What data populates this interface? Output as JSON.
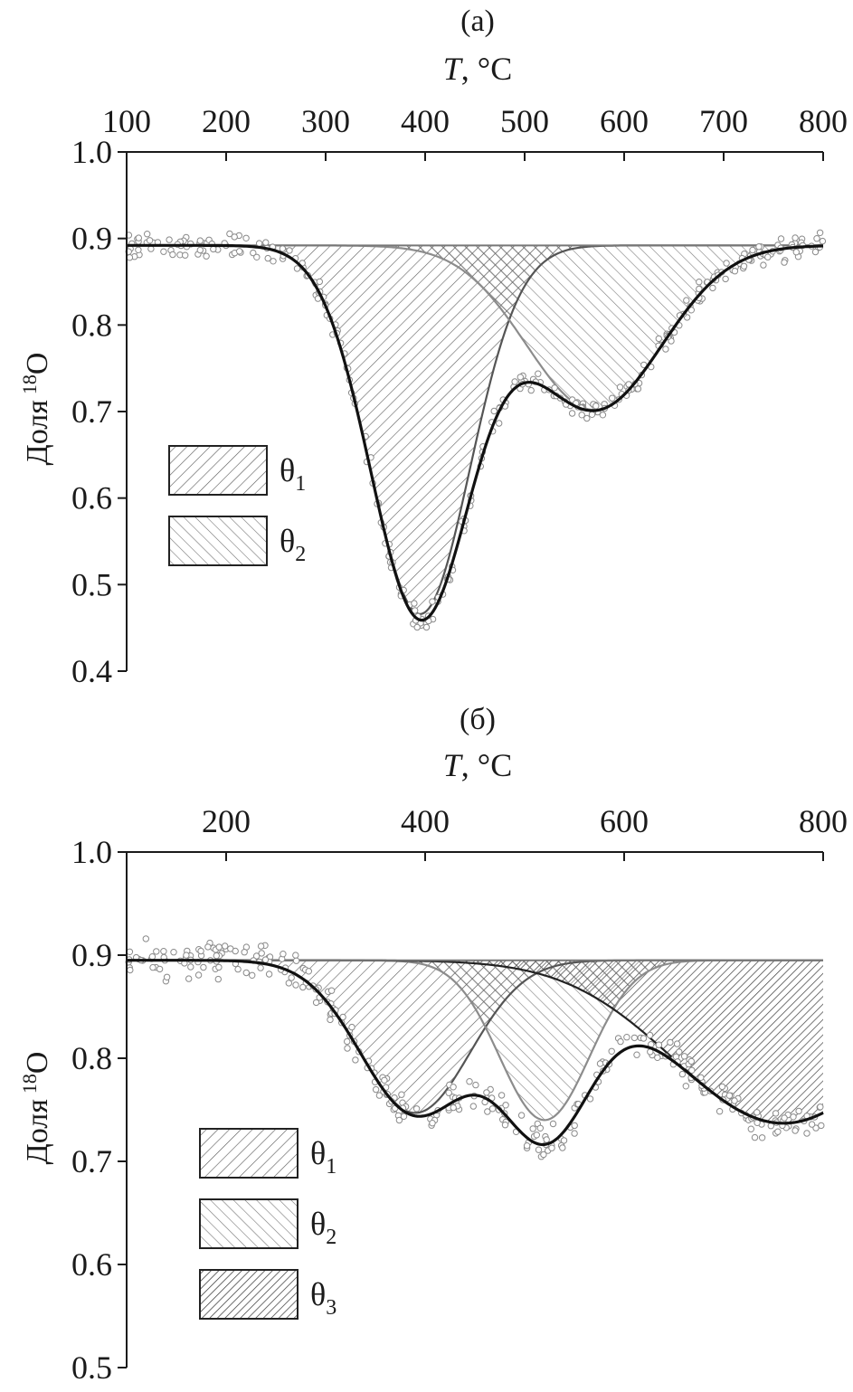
{
  "chart_data": [
    {
      "panel_label": "(a)",
      "type": "area",
      "xlabel_italic": "T",
      "xlabel_unit": ", °C",
      "ylabel": "Доля",
      "ylabel_sup": "18",
      "ylabel_tail": "O",
      "x_axis_position": "top",
      "xlim": [
        100,
        800
      ],
      "ylim": [
        0.4,
        1.0
      ],
      "x_ticks": [
        "100",
        "200",
        "300",
        "400",
        "500",
        "600",
        "700",
        "800"
      ],
      "x_tick_values": [
        100,
        200,
        300,
        400,
        500,
        600,
        700,
        800
      ],
      "y_ticks": [
        "1.0",
        "0.9",
        "0.8",
        "0.7",
        "0.6",
        "0.5",
        "0.4"
      ],
      "y_tick_values": [
        1.0,
        0.9,
        0.8,
        0.7,
        0.6,
        0.5,
        0.4
      ],
      "baseline": 0.892,
      "grid": false,
      "legend_position": "left",
      "legend": [
        {
          "symbol": "θ",
          "sub": "1",
          "pattern": "hatch-fwd"
        },
        {
          "symbol": "θ",
          "sub": "2",
          "pattern": "hatch-back"
        }
      ],
      "peaks": [
        {
          "center": 395,
          "depth": 0.426,
          "sigma": 50,
          "pattern": "hatch-fwd"
        },
        {
          "center": 570,
          "depth": 0.19,
          "sigma": 68,
          "pattern": "hatch-back"
        }
      ],
      "overlap_pattern": "crosshatch",
      "fit_curve": "sum",
      "scatter": {
        "x_range": [
          100,
          800
        ],
        "count": 320,
        "noise": 0.006
      }
    },
    {
      "panel_label": "(б)",
      "type": "area",
      "xlabel_italic": "T",
      "xlabel_unit": ", °C",
      "ylabel": "Доля",
      "ylabel_sup": "18",
      "ylabel_tail": "O",
      "x_axis_position": "top",
      "xlim": [
        100,
        800
      ],
      "ylim": [
        0.5,
        1.0
      ],
      "x_ticks": [
        "200",
        "400",
        "600",
        "800"
      ],
      "x_tick_values": [
        200,
        400,
        600,
        800
      ],
      "y_ticks": [
        "1.0",
        "0.9",
        "0.8",
        "0.7",
        "0.6",
        "0.5"
      ],
      "y_tick_values": [
        1.0,
        0.9,
        0.8,
        0.7,
        0.6,
        0.5
      ],
      "baseline": 0.895,
      "grid": false,
      "legend_position": "left",
      "legend": [
        {
          "symbol": "θ",
          "sub": "1",
          "pattern": "hatch-fwd"
        },
        {
          "symbol": "θ",
          "sub": "2",
          "pattern": "hatch-back"
        },
        {
          "symbol": "θ",
          "sub": "3",
          "pattern": "hatch-dense"
        }
      ],
      "peaks": [
        {
          "center": 390,
          "depth": 0.148,
          "sigma": 55,
          "pattern": "hatch-fwd"
        },
        {
          "center": 520,
          "depth": 0.155,
          "sigma": 45,
          "pattern": "hatch-back"
        },
        {
          "center": 760,
          "depth": 0.158,
          "sigma": 110,
          "pattern": "hatch-dense"
        }
      ],
      "overlap_pattern": "crosshatch",
      "fit_curve": "sum",
      "scatter": {
        "x_range": [
          100,
          800
        ],
        "count": 320,
        "noise": 0.008
      }
    }
  ]
}
